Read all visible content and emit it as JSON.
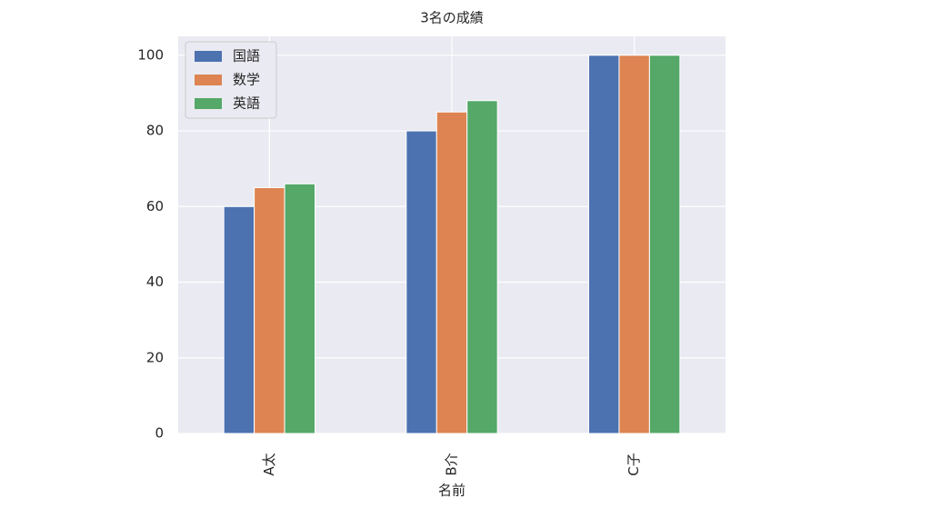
{
  "chart_data": {
    "type": "bar",
    "title": "3名の成績",
    "x_label": "名前",
    "categories": [
      "A太",
      "B介",
      "C子"
    ],
    "series": [
      {
        "name": "国語",
        "color": "#4c72b0",
        "values": [
          60,
          80,
          100
        ]
      },
      {
        "name": "数学",
        "color": "#dd8452",
        "values": [
          65,
          85,
          100
        ]
      },
      {
        "name": "英語",
        "color": "#55a868",
        "values": [
          66,
          88,
          100
        ]
      }
    ],
    "ylim": [
      0,
      105
    ],
    "yticks": [
      0,
      20,
      40,
      60,
      80,
      100
    ],
    "grid": true,
    "legend": "upper left"
  }
}
